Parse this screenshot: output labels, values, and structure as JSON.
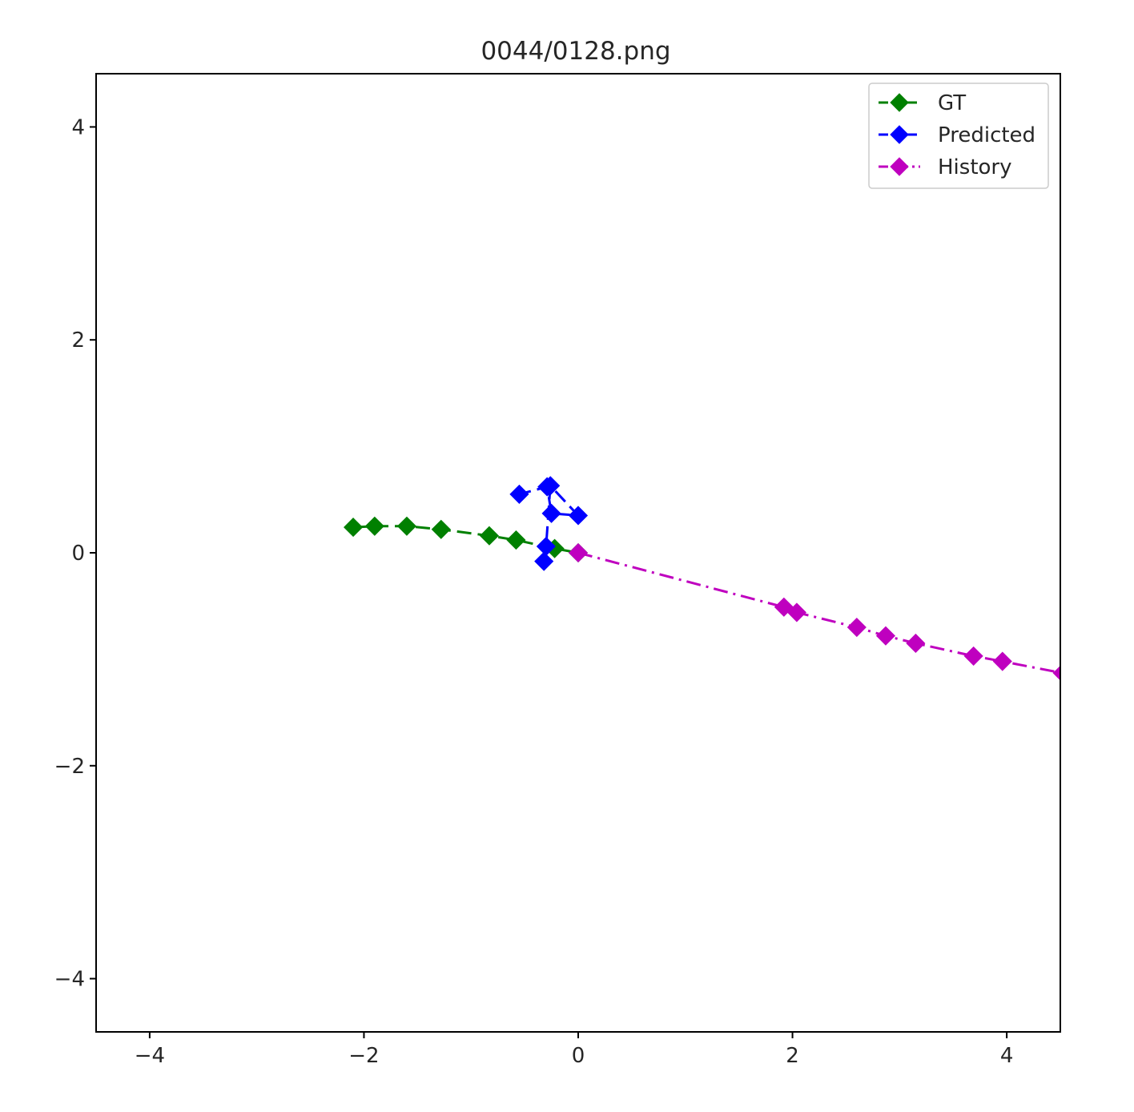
{
  "chart_data": {
    "type": "line",
    "title": "0044/0128.png",
    "xlabel": "",
    "ylabel": "",
    "xlim": [
      -4.5,
      4.5
    ],
    "ylim": [
      -4.5,
      4.5
    ],
    "xticks": [
      -4,
      -2,
      0,
      2,
      4
    ],
    "yticks": [
      -4,
      -2,
      0,
      2,
      4
    ],
    "xtick_labels": [
      "−4",
      "−2",
      "0",
      "2",
      "4"
    ],
    "ytick_labels": [
      "−4",
      "−2",
      "0",
      "2",
      "4"
    ],
    "grid": false,
    "legend_position": "top-right",
    "series": [
      {
        "name": "GT",
        "color": "#008000",
        "linestyle": "dashed",
        "marker": "diamond",
        "x": [
          -2.1,
          -1.9,
          -1.6,
          -1.28,
          -0.83,
          -0.58,
          -0.22,
          0.0
        ],
        "y": [
          0.24,
          0.25,
          0.25,
          0.22,
          0.16,
          0.12,
          0.04,
          0.0
        ]
      },
      {
        "name": "Predicted",
        "color": "#0000ff",
        "linestyle": "dashed",
        "marker": "diamond",
        "x": [
          -0.32,
          -0.3,
          -0.26,
          0.0,
          -0.25,
          -0.29,
          -0.55
        ],
        "y": [
          -0.08,
          0.06,
          0.63,
          0.35,
          0.37,
          0.62,
          0.55
        ]
      },
      {
        "name": "History",
        "color": "#bf00bf",
        "linestyle": "dashdot",
        "marker": "diamond",
        "x": [
          0.0,
          1.92,
          2.04,
          2.6,
          2.87,
          3.15,
          3.69,
          3.96,
          4.52
        ],
        "y": [
          0.0,
          -0.51,
          -0.56,
          -0.7,
          -0.78,
          -0.85,
          -0.97,
          -1.02,
          -1.13
        ]
      }
    ]
  }
}
